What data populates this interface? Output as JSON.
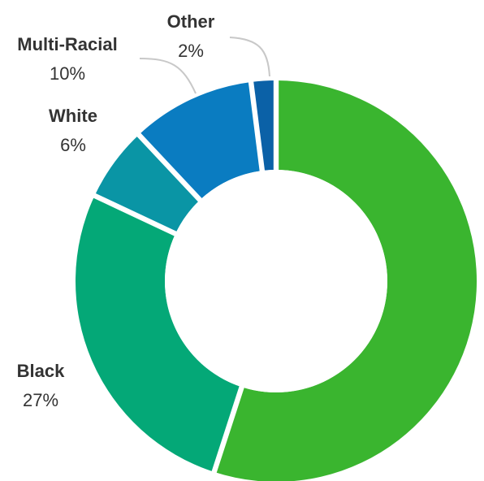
{
  "chart_data": {
    "type": "pie",
    "donut": true,
    "title": "",
    "legend": "none",
    "slices": [
      {
        "label": "",
        "value": 55,
        "value_label": "",
        "color": "#3ab52f",
        "show_label": false
      },
      {
        "label": "Black",
        "value": 27,
        "value_label": "27%",
        "color": "#04a877",
        "show_label": true
      },
      {
        "label": "White",
        "value": 6,
        "value_label": "6%",
        "color": "#0a95a5",
        "show_label": true
      },
      {
        "label": "Multi-Racial",
        "value": 10,
        "value_label": "10%",
        "color": "#0a7cc1",
        "show_label": true
      },
      {
        "label": "Other",
        "value": 2,
        "value_label": "2%",
        "color": "#0b61a7",
        "show_label": true
      }
    ]
  }
}
